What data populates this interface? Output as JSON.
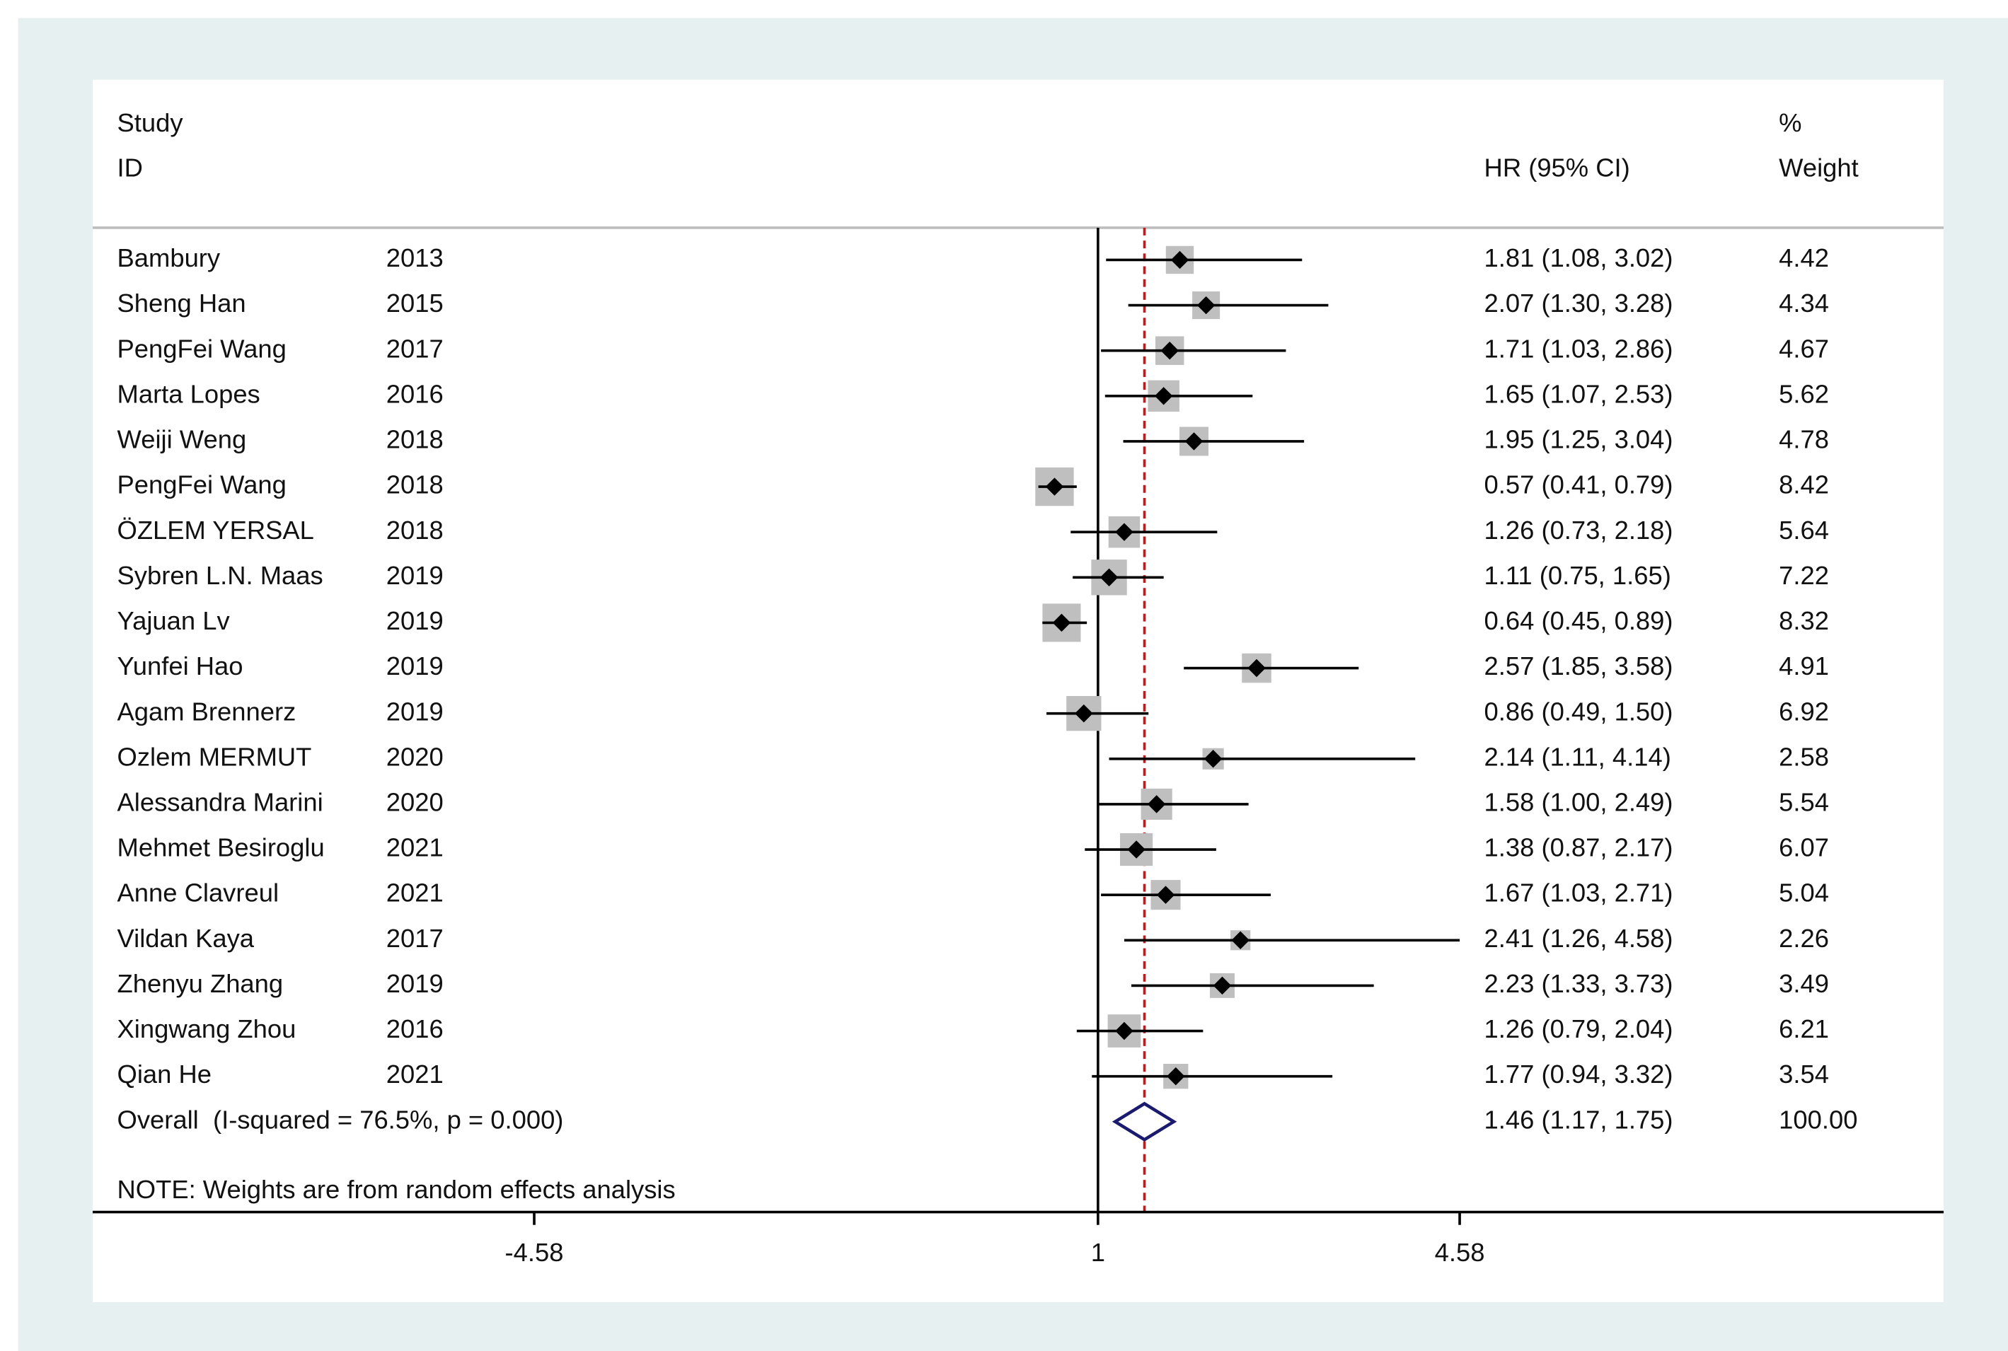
{
  "chart_data": {
    "type": "forest",
    "headers": {
      "study": "Study",
      "id": "ID",
      "ci": "HR (95% CI)",
      "pct": "%",
      "weight": "Weight"
    },
    "studies": [
      "Bambury",
      "Sheng Han",
      "PengFei Wang",
      "Marta Lopes",
      "Weiji Weng",
      "PengFei Wang",
      "ÖZLEM YERSAL",
      "Sybren L.N. Maas",
      "Yajuan Lv",
      "Yunfei Hao",
      "Agam Brennerz",
      "Ozlem MERMUT",
      "Alessandra Marini",
      "Mehmet Besiroglu",
      "Anne Clavreul",
      "Vildan Kaya",
      "Zhenyu Zhang",
      "Xingwang Zhou",
      "Qian He"
    ],
    "years": [
      2013,
      2015,
      2017,
      2016,
      2018,
      2018,
      2018,
      2019,
      2019,
      2019,
      2019,
      2020,
      2020,
      2021,
      2021,
      2017,
      2019,
      2016,
      2021
    ],
    "hr": [
      1.81,
      2.07,
      1.71,
      1.65,
      1.95,
      0.57,
      1.26,
      1.11,
      0.64,
      2.57,
      0.86,
      2.14,
      1.58,
      1.38,
      1.67,
      2.41,
      2.23,
      1.26,
      1.77
    ],
    "lo": [
      1.08,
      1.3,
      1.03,
      1.07,
      1.25,
      0.41,
      0.73,
      0.75,
      0.45,
      1.85,
      0.49,
      1.11,
      1.0,
      0.87,
      1.03,
      1.26,
      1.33,
      0.79,
      0.94
    ],
    "hi": [
      3.02,
      3.28,
      2.86,
      2.53,
      3.04,
      0.79,
      2.18,
      1.65,
      0.89,
      3.58,
      1.5,
      4.14,
      2.49,
      2.17,
      2.71,
      4.58,
      3.73,
      2.04,
      3.32
    ],
    "value_labels": [
      "1.81 (1.08, 3.02)",
      "2.07 (1.30, 3.28)",
      "1.71 (1.03, 2.86)",
      "1.65 (1.07, 2.53)",
      "1.95 (1.25, 3.04)",
      "0.57 (0.41, 0.79)",
      "1.26 (0.73, 2.18)",
      "1.11 (0.75, 1.65)",
      "0.64 (0.45, 0.89)",
      "2.57 (1.85, 3.58)",
      "0.86 (0.49, 1.50)",
      "2.14 (1.11, 4.14)",
      "1.58 (1.00, 2.49)",
      "1.38 (0.87, 2.17)",
      "1.67 (1.03, 2.71)",
      "2.41 (1.26, 4.58)",
      "2.23 (1.33, 3.73)",
      "1.26 (0.79, 2.04)",
      "1.77 (0.94, 3.32)"
    ],
    "weights": [
      4.42,
      4.34,
      4.67,
      5.62,
      4.78,
      8.42,
      5.64,
      7.22,
      8.32,
      4.91,
      6.92,
      2.58,
      5.54,
      6.07,
      5.04,
      2.26,
      3.49,
      6.21,
      3.54
    ],
    "overall": {
      "label": "Overall  (I-squared = 76.5%, p = 0.000)",
      "hr": 1.46,
      "lo": 1.17,
      "hi": 1.75,
      "value_label": "1.46 (1.17, 1.75)",
      "weight": 100,
      "weight_label": "100.00"
    },
    "note": "NOTE: Weights are from random effects analysis",
    "null_value": 1,
    "xlim": [
      -8.95,
      9.37
    ],
    "xticks": [
      -4.58,
      1,
      4.58
    ],
    "box_color": "#bfbfbf",
    "point_color": "#000000",
    "overall_color": "#1a1a6e",
    "overall_line_color": "#b22222"
  }
}
